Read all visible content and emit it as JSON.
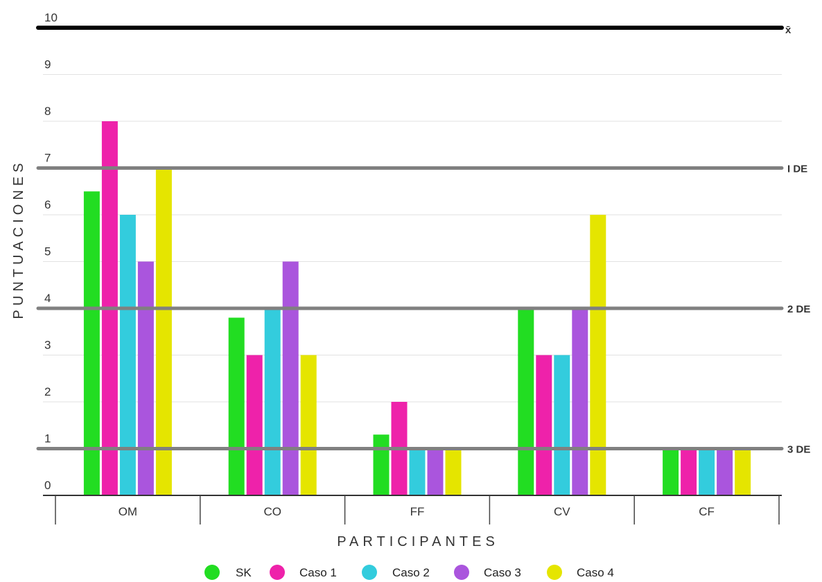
{
  "chart_data": {
    "type": "bar",
    "title": "",
    "xlabel": "PARTICIPANTES",
    "ylabel": "PUNTUACIONES",
    "ylim": [
      0,
      10
    ],
    "yticks": [
      "0",
      "1",
      "2",
      "3",
      "4",
      "5",
      "6",
      "7",
      "8",
      "9",
      "10"
    ],
    "grid": true,
    "legend_position": "bottom",
    "categories": [
      "OM",
      "CO",
      "FF",
      "CV",
      "CF"
    ],
    "series": [
      {
        "name": "SK",
        "color": "#22dd22",
        "values": [
          6.5,
          3.8,
          1.3,
          4.0,
          1.0
        ]
      },
      {
        "name": "Caso 1",
        "color": "#ee22aa",
        "values": [
          8.0,
          3.0,
          2.0,
          3.0,
          1.0
        ]
      },
      {
        "name": "Caso 2",
        "color": "#33ccdd",
        "values": [
          6.0,
          4.0,
          1.0,
          3.0,
          1.0
        ]
      },
      {
        "name": "Caso 3",
        "color": "#aa55dd",
        "values": [
          5.0,
          5.0,
          1.0,
          4.0,
          1.0
        ]
      },
      {
        "name": "Caso 4",
        "color": "#e5e500",
        "values": [
          7.0,
          3.0,
          1.0,
          6.0,
          1.0
        ]
      }
    ],
    "reference_lines": [
      {
        "label": "x̄",
        "value": 10,
        "color": "#000000"
      },
      {
        "label": "I DE",
        "value": 7,
        "color": "#808080"
      },
      {
        "label": "2 DE",
        "value": 4,
        "color": "#808080"
      },
      {
        "label": "3 DE",
        "value": 1,
        "color": "#808080"
      }
    ]
  }
}
